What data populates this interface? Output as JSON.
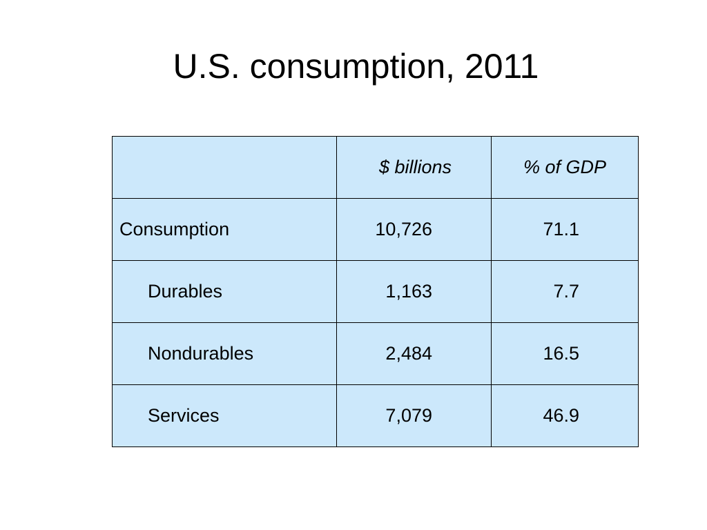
{
  "slide": {
    "title": "U.S. consumption, 2011"
  },
  "table": {
    "headers": [
      "",
      "$ billions",
      "% of GDP"
    ],
    "rows": [
      {
        "label": "Consumption",
        "billions": "10,726",
        "pct_gdp": "71.1"
      },
      {
        "label": "Durables",
        "billions": "1,163",
        "pct_gdp": "7.7"
      },
      {
        "label": "Nondurables",
        "billions": "2,484",
        "pct_gdp": "16.5"
      },
      {
        "label": "Services",
        "billions": "7,079",
        "pct_gdp": "46.9"
      }
    ]
  },
  "colors": {
    "cell_fill": "#cce8fb",
    "border": "#000000",
    "text": "#000000",
    "background": "#ffffff"
  }
}
